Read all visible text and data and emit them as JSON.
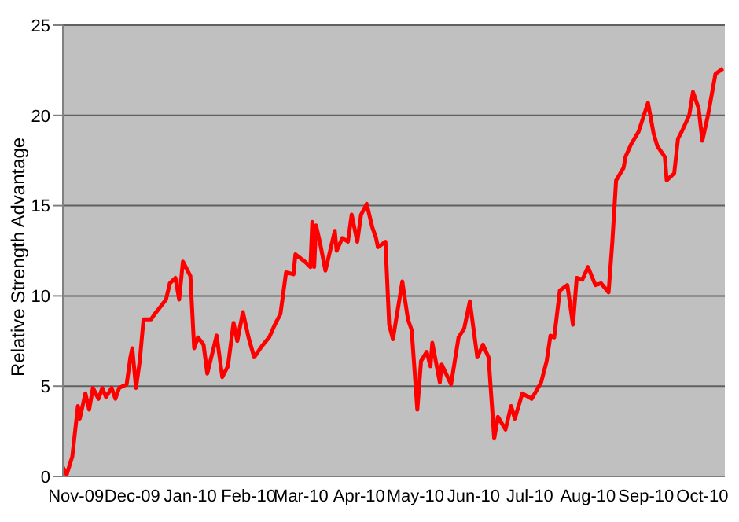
{
  "chart_data": {
    "type": "line",
    "ylabel": "Relative Strength Advantage",
    "xlim": [
      "2009-10-25",
      "2010-10-13"
    ],
    "ylim": [
      0,
      25
    ],
    "yticks": [
      0,
      5,
      10,
      15,
      20,
      25
    ],
    "xticks": [
      {
        "value": "2009-11-01",
        "label": "Nov-09"
      },
      {
        "value": "2009-12-01",
        "label": "Dec-09"
      },
      {
        "value": "2010-01-01",
        "label": "Jan-10"
      },
      {
        "value": "2010-02-01",
        "label": "Feb-10"
      },
      {
        "value": "2010-03-01",
        "label": "Mar-10"
      },
      {
        "value": "2010-04-01",
        "label": "Apr-10"
      },
      {
        "value": "2010-05-01",
        "label": "May-10"
      },
      {
        "value": "2010-06-01",
        "label": "Jun-10"
      },
      {
        "value": "2010-07-01",
        "label": "Jul-10"
      },
      {
        "value": "2010-08-01",
        "label": "Aug-10"
      },
      {
        "value": "2010-09-01",
        "label": "Sep-10"
      },
      {
        "value": "2010-10-01",
        "label": "Oct-10"
      }
    ],
    "grid": "y",
    "legend": false,
    "marker": "none",
    "line_style": "solid",
    "series": [
      {
        "color": "#ff0000",
        "x": [
          "2009-10-25",
          "2009-10-27",
          "2009-10-30",
          "2009-11-02",
          "2009-11-03",
          "2009-11-06",
          "2009-11-08",
          "2009-11-10",
          "2009-11-13",
          "2009-11-15",
          "2009-11-17",
          "2009-11-20",
          "2009-11-22",
          "2009-11-24",
          "2009-11-28",
          "2009-11-30",
          "2009-12-01",
          "2009-12-03",
          "2009-12-05",
          "2009-12-07",
          "2009-12-11",
          "2009-12-13",
          "2009-12-16",
          "2009-12-19",
          "2009-12-21",
          "2009-12-24",
          "2009-12-26",
          "2009-12-28",
          "2010-01-01",
          "2010-01-03",
          "2010-01-05",
          "2010-01-08",
          "2010-01-10",
          "2010-01-15",
          "2010-01-18",
          "2010-01-21",
          "2010-01-24",
          "2010-01-26",
          "2010-01-29",
          "2010-02-01",
          "2010-02-04",
          "2010-02-08",
          "2010-02-12",
          "2010-02-15",
          "2010-02-18",
          "2010-02-21",
          "2010-02-25",
          "2010-02-26",
          "2010-03-03",
          "2010-03-06",
          "2010-03-07",
          "2010-03-08",
          "2010-03-09",
          "2010-03-11",
          "2010-03-14",
          "2010-03-19",
          "2010-03-20",
          "2010-03-23",
          "2010-03-26",
          "2010-03-28",
          "2010-03-31",
          "2010-04-02",
          "2010-04-05",
          "2010-04-08",
          "2010-04-10",
          "2010-04-11",
          "2010-04-15",
          "2010-04-17",
          "2010-04-19",
          "2010-04-24",
          "2010-04-27",
          "2010-04-29",
          "2010-05-02",
          "2010-05-04",
          "2010-05-07",
          "2010-05-09",
          "2010-05-10",
          "2010-05-14",
          "2010-05-15",
          "2010-05-20",
          "2010-05-24",
          "2010-05-27",
          "2010-05-30",
          "2010-06-03",
          "2010-06-06",
          "2010-06-09",
          "2010-06-12",
          "2010-06-14",
          "2010-06-18",
          "2010-06-21",
          "2010-06-23",
          "2010-06-27",
          "2010-07-02",
          "2010-07-07",
          "2010-07-10",
          "2010-07-12",
          "2010-07-14",
          "2010-07-17",
          "2010-07-21",
          "2010-07-24",
          "2010-07-26",
          "2010-07-29",
          "2010-08-01",
          "2010-08-05",
          "2010-08-08",
          "2010-08-12",
          "2010-08-14",
          "2010-08-16",
          "2010-08-20",
          "2010-08-21",
          "2010-08-24",
          "2010-08-28",
          "2010-09-02",
          "2010-09-05",
          "2010-09-07",
          "2010-09-11",
          "2010-09-12",
          "2010-09-16",
          "2010-09-18",
          "2010-09-20",
          "2010-09-24",
          "2010-09-26",
          "2010-09-29",
          "2010-10-01",
          "2010-10-04",
          "2010-10-08",
          "2010-10-12"
        ],
        "values": [
          0.5,
          0.1,
          1.1,
          3.9,
          3.2,
          4.6,
          3.7,
          4.9,
          4.3,
          4.9,
          4.4,
          4.9,
          4.3,
          4.9,
          5.1,
          6.6,
          7.1,
          4.9,
          6.4,
          8.7,
          8.7,
          9.0,
          9.4,
          9.8,
          10.7,
          11.0,
          9.8,
          11.9,
          11.1,
          7.1,
          7.7,
          7.3,
          5.7,
          7.8,
          5.5,
          6.1,
          8.5,
          7.5,
          9.1,
          7.7,
          6.6,
          7.2,
          7.7,
          8.4,
          9.0,
          11.3,
          11.2,
          12.3,
          11.9,
          11.6,
          14.1,
          11.6,
          13.9,
          13.0,
          11.4,
          13.6,
          12.5,
          13.2,
          13.0,
          14.5,
          13.0,
          14.5,
          15.1,
          13.8,
          13.2,
          12.7,
          13.0,
          8.4,
          7.6,
          10.8,
          8.7,
          8.1,
          3.7,
          6.4,
          6.9,
          6.1,
          7.4,
          5.2,
          6.2,
          5.1,
          7.7,
          8.2,
          9.7,
          6.6,
          7.3,
          6.6,
          2.1,
          3.3,
          2.6,
          3.9,
          3.2,
          4.6,
          4.3,
          5.2,
          6.4,
          7.8,
          7.7,
          10.3,
          10.6,
          8.4,
          11.0,
          10.9,
          11.6,
          10.6,
          10.7,
          10.2,
          13.0,
          16.4,
          17.1,
          17.7,
          18.4,
          19.1,
          20.7,
          19.0,
          18.3,
          17.7,
          16.4,
          16.8,
          18.7,
          19.1,
          20.0,
          21.3,
          20.4,
          18.6,
          20.0,
          22.3,
          22.6
        ]
      }
    ]
  }
}
